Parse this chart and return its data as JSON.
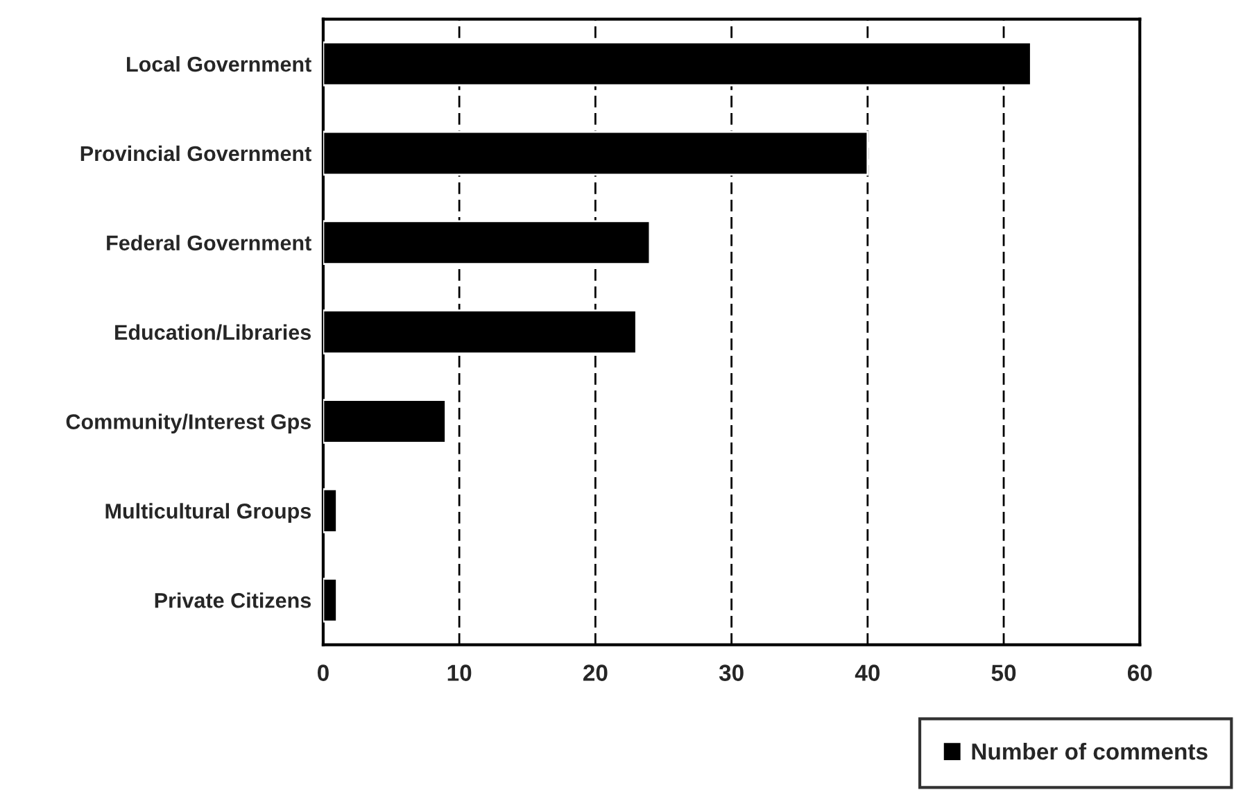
{
  "chart_data": {
    "type": "bar",
    "orientation": "horizontal",
    "categories": [
      "Local Government",
      "Provincial Government",
      "Federal Government",
      "Education/Libraries",
      "Community/Interest Gps",
      "Multicultural Groups",
      "Private Citizens"
    ],
    "series": [
      {
        "name": "Number of comments",
        "color": "#000000",
        "values": [
          52,
          40,
          24,
          23,
          9,
          1,
          1
        ]
      }
    ],
    "xlim": [
      0,
      60
    ],
    "xticks": [
      0,
      10,
      20,
      30,
      40,
      50,
      60
    ],
    "grid": "x",
    "legend": "bottom right"
  }
}
